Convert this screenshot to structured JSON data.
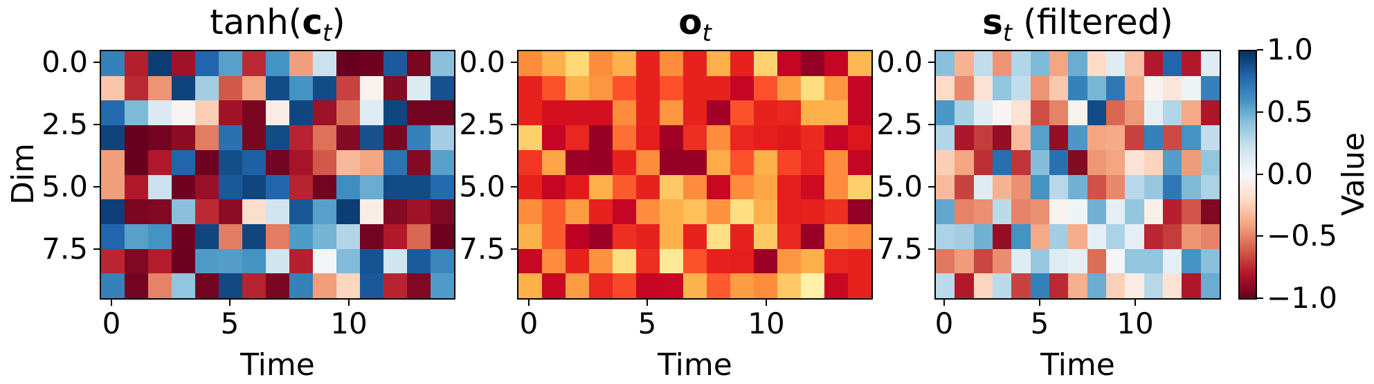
{
  "figure": {
    "background": "#ffffff"
  },
  "axes": {
    "xlabel": "Time",
    "ylabel": "Dim",
    "xticks": [
      "0",
      "5",
      "10"
    ],
    "xtick_positions": [
      0,
      5,
      10
    ],
    "yticks": [
      "0.0",
      "2.5",
      "5.0",
      "7.5"
    ],
    "ytick_positions": [
      0,
      2.5,
      5,
      7.5
    ]
  },
  "colorbar": {
    "label": "Value",
    "ticks": [
      "1.0",
      "0.5",
      "0.0",
      "−0.5",
      "−1.0"
    ],
    "tick_values": [
      1.0,
      0.5,
      0.0,
      -0.5,
      -1.0
    ],
    "cmap_name": "RdBu",
    "cmap_colors": [
      "#67001f",
      "#b2182b",
      "#d6604d",
      "#f4a582",
      "#fddbc7",
      "#f7f7f7",
      "#d1e5f0",
      "#92c5de",
      "#4393c3",
      "#2166ac",
      "#053061"
    ]
  },
  "titles": [
    {
      "prefix": "tanh(",
      "bold": "c",
      "sub": "t",
      "suffix": ")"
    },
    {
      "prefix": "",
      "bold": "o",
      "sub": "t",
      "suffix": ""
    },
    {
      "prefix": "",
      "bold": "s",
      "sub": "t",
      "suffix": " (filtered)"
    }
  ],
  "chart_data": [
    {
      "type": "heatmap",
      "title": "tanh(c_t)",
      "xlabel": "Time",
      "ylabel": "Dim",
      "rows": 10,
      "cols": 15,
      "value_range": [
        -1,
        1
      ],
      "colormap": "RdBu",
      "values": [
        [
          0.68,
          -0.78,
          0.95,
          -0.85,
          0.8,
          0.55,
          -0.75,
          0.6,
          -0.42,
          0.22,
          -1.0,
          -0.98,
          0.84,
          -0.95,
          0.42
        ],
        [
          -0.28,
          -0.75,
          -0.45,
          0.93,
          0.35,
          -0.62,
          -0.4,
          0.9,
          0.6,
          0.9,
          -0.68,
          -0.04,
          -0.92,
          0.14,
          0.88
        ],
        [
          0.78,
          0.45,
          0.15,
          -0.02,
          -0.25,
          -0.85,
          -0.95,
          -0.08,
          0.92,
          -0.86,
          -0.57,
          0.13,
          0.92,
          -0.97,
          -0.97
        ],
        [
          0.93,
          -1.0,
          -0.97,
          -0.9,
          -0.52,
          0.75,
          -0.95,
          0.9,
          -0.77,
          -0.55,
          -0.92,
          0.88,
          -0.95,
          0.68,
          0.35
        ],
        [
          -0.42,
          -1.0,
          -0.8,
          0.8,
          -0.98,
          0.89,
          0.82,
          -0.97,
          -0.83,
          -0.62,
          -0.33,
          -0.4,
          0.74,
          -0.92,
          0.55
        ],
        [
          -0.42,
          -0.8,
          0.22,
          -0.98,
          -0.87,
          0.85,
          0.92,
          0.8,
          -0.77,
          -0.97,
          0.62,
          0.5,
          0.9,
          0.9,
          0.78
        ],
        [
          0.94,
          -0.95,
          -0.93,
          0.42,
          -0.75,
          -0.9,
          -0.18,
          0.2,
          0.86,
          0.55,
          0.95,
          -0.07,
          -0.92,
          -0.85,
          -0.93
        ],
        [
          0.8,
          0.55,
          0.6,
          -0.98,
          0.92,
          -0.52,
          0.92,
          -0.52,
          0.57,
          0.47,
          0.3,
          -0.97,
          -0.8,
          -0.58,
          -0.98
        ],
        [
          -0.76,
          -0.93,
          -0.79,
          -0.99,
          0.57,
          0.56,
          0.6,
          0.2,
          -0.78,
          0.02,
          0.44,
          0.87,
          0.2,
          0.84,
          0.66
        ],
        [
          0.68,
          -0.97,
          -0.5,
          0.4,
          -0.97,
          0.91,
          -0.77,
          -0.95,
          0.68,
          -0.42,
          -0.22,
          0.85,
          -0.77,
          -0.93,
          0.57
        ]
      ]
    },
    {
      "type": "heatmap",
      "title": "o_t",
      "xlabel": "Time",
      "rows": 10,
      "cols": 15,
      "value_range": [
        0,
        1
      ],
      "colormap": "YlOrRd",
      "colormap_colors": [
        "#ffffcc",
        "#ffeda0",
        "#fed976",
        "#feb24c",
        "#fd8d3c",
        "#fc4e2a",
        "#e31a1c",
        "#bd0026",
        "#800026"
      ],
      "values": [
        [
          0.5,
          0.38,
          0.25,
          0.5,
          0.38,
          0.73,
          0.5,
          0.73,
          0.38,
          0.73,
          0.27,
          0.85,
          0.96,
          0.85,
          0.36
        ],
        [
          0.73,
          0.62,
          0.38,
          0.47,
          0.62,
          0.73,
          0.62,
          0.73,
          0.73,
          0.85,
          0.62,
          0.45,
          0.22,
          0.47,
          0.85
        ],
        [
          0.73,
          0.8,
          0.8,
          0.8,
          0.5,
          0.73,
          0.47,
          0.73,
          0.93,
          0.62,
          0.73,
          0.72,
          0.38,
          0.38,
          0.85
        ],
        [
          0.28,
          0.85,
          0.72,
          0.95,
          0.56,
          0.74,
          0.93,
          0.7,
          0.5,
          0.72,
          0.74,
          0.76,
          0.71,
          0.85,
          0.77
        ],
        [
          0.68,
          0.42,
          0.94,
          0.95,
          0.73,
          0.5,
          0.96,
          0.95,
          0.4,
          0.62,
          0.38,
          0.65,
          0.72,
          0.5,
          0.85
        ],
        [
          0.73,
          0.85,
          0.75,
          0.38,
          0.6,
          0.73,
          0.3,
          0.5,
          0.84,
          0.5,
          0.42,
          0.74,
          0.82,
          0.5,
          0.28
        ],
        [
          0.5,
          0.6,
          0.45,
          0.73,
          0.85,
          0.5,
          0.38,
          0.33,
          0.48,
          0.22,
          0.38,
          0.74,
          0.73,
          0.7,
          0.96
        ],
        [
          0.38,
          0.6,
          0.87,
          0.94,
          0.7,
          0.73,
          0.38,
          0.73,
          0.2,
          0.73,
          0.3,
          0.72,
          0.95,
          0.47,
          0.5
        ],
        [
          0.84,
          0.5,
          0.73,
          0.48,
          0.22,
          0.7,
          0.15,
          0.62,
          0.73,
          0.74,
          0.94,
          0.47,
          0.38,
          0.72,
          0.73
        ],
        [
          0.38,
          0.84,
          0.45,
          0.72,
          0.64,
          0.85,
          0.84,
          0.37,
          0.6,
          0.45,
          0.5,
          0.3,
          0.1,
          0.84,
          0.73
        ]
      ]
    },
    {
      "type": "heatmap",
      "title": "s_t (filtered)",
      "xlabel": "Time",
      "rows": 10,
      "cols": 15,
      "value_range": [
        -1,
        1
      ],
      "colormap": "RdBu",
      "values": [
        [
          0.42,
          -0.35,
          0.25,
          -0.45,
          0.3,
          0.45,
          -0.4,
          0.5,
          -0.2,
          0.12,
          -0.3,
          -0.8,
          0.8,
          -0.8,
          0.12
        ],
        [
          -0.2,
          -0.48,
          -0.15,
          0.4,
          0.25,
          -0.45,
          -0.27,
          0.68,
          0.46,
          0.72,
          -0.38,
          -0.03,
          -0.12,
          0.05,
          0.68
        ],
        [
          0.58,
          0.33,
          0.12,
          -0.02,
          -0.15,
          -0.65,
          -0.5,
          -0.04,
          0.9,
          -0.58,
          -0.44,
          0.1,
          0.3,
          -0.38,
          -0.82
        ],
        [
          0.3,
          -0.82,
          -0.7,
          -0.88,
          -0.32,
          0.55,
          -0.88,
          0.58,
          -0.4,
          -0.38,
          -0.68,
          0.68,
          -0.66,
          0.6,
          0.25
        ],
        [
          -0.25,
          -0.4,
          -0.74,
          0.76,
          -0.72,
          0.43,
          0.75,
          -0.92,
          -0.44,
          -0.4,
          -0.14,
          -0.23,
          0.56,
          -0.43,
          0.4
        ],
        [
          -0.32,
          -0.68,
          0.13,
          -0.35,
          -0.46,
          0.6,
          0.28,
          0.48,
          -0.64,
          -0.48,
          0.28,
          0.38,
          0.72,
          0.45,
          0.32
        ],
        [
          0.52,
          -0.5,
          -0.46,
          0.27,
          -0.5,
          -0.46,
          -0.04,
          0.05,
          0.48,
          0.1,
          0.4,
          -0.06,
          -0.78,
          -0.63,
          -0.93
        ],
        [
          0.32,
          0.35,
          0.48,
          -0.88,
          0.6,
          -0.38,
          0.35,
          -0.37,
          0.1,
          0.32,
          0.1,
          -0.76,
          -0.7,
          -0.45,
          -0.5
        ],
        [
          -0.53,
          -0.43,
          -0.67,
          -0.47,
          0.12,
          0.38,
          0.13,
          0.1,
          -0.56,
          0.02,
          0.4,
          0.4,
          0.1,
          0.6,
          0.42
        ],
        [
          0.27,
          -0.8,
          -0.22,
          0.27,
          -0.68,
          0.68,
          -0.75,
          -0.36,
          0.5,
          -0.24,
          -0.08,
          0.28,
          -0.14,
          -0.81,
          0.5
        ]
      ]
    }
  ],
  "layout_note_visible_text_only": true
}
